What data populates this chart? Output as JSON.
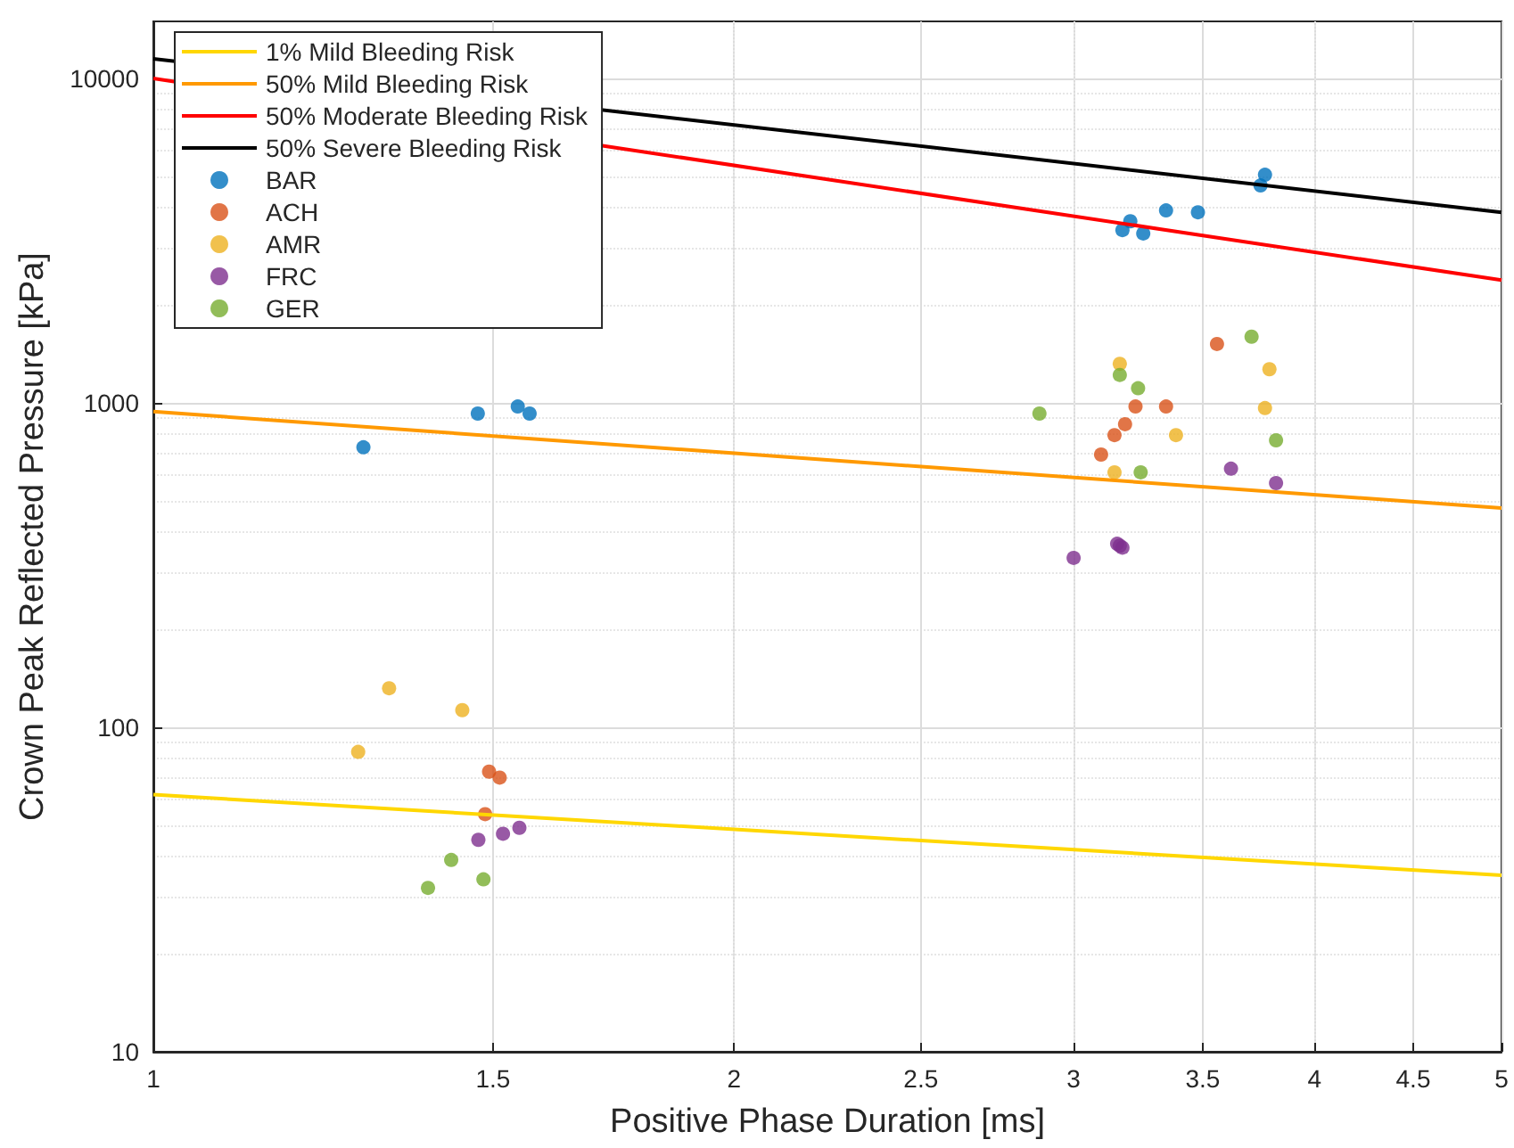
{
  "chart_data": {
    "type": "scatter",
    "xlabel": "Positive Phase Duration [ms]",
    "ylabel": "Crown Peak Reflected Pressure [kPa]",
    "log": "xy",
    "grid": true,
    "legend": "top left",
    "line_style": "solid",
    "xlim": [
      1,
      5
    ],
    "xticks": [
      1,
      1.5,
      2,
      2.5,
      3,
      3.5,
      4,
      4.5,
      5
    ],
    "ylim": [
      10,
      15000
    ],
    "yticks": [
      10,
      100,
      1000,
      10000
    ],
    "series": [
      {
        "name": "1% Mild Bleeding Risk",
        "type": "line",
        "marker": "none",
        "color": "#ffd700",
        "x": [
          1,
          5
        ],
        "values": [
          62,
          35
        ]
      },
      {
        "name": "50% Mild Bleeding Risk",
        "type": "line",
        "marker": "none",
        "color": "#ff9900",
        "x": [
          1,
          5
        ],
        "values": [
          940,
          474
        ]
      },
      {
        "name": "50% Moderate Bleeding Risk",
        "type": "line",
        "marker": "none",
        "color": "#ff0000",
        "x": [
          1,
          5
        ],
        "values": [
          10000,
          2390
        ]
      },
      {
        "name": "50% Severe Bleeding Risk",
        "type": "line",
        "marker": "none",
        "color": "#000000",
        "x": [
          1,
          5
        ],
        "values": [
          11500,
          3870
        ]
      },
      {
        "name": "BAR",
        "marker": "circle",
        "color": "#0072bd",
        "x": [
          1.285,
          1.473,
          1.545,
          1.567,
          3.18,
          3.21,
          3.26,
          3.35,
          3.48,
          3.75,
          3.77
        ],
        "values": [
          730,
          927,
          975,
          927,
          3410,
          3630,
          3330,
          3920,
          3870,
          4680,
          5050
        ]
      },
      {
        "name": "ACH",
        "marker": "circle",
        "color": "#d95319",
        "x": [
          3.56,
          3.23,
          3.35,
          3.19,
          3.15,
          3.1,
          1.493,
          1.512,
          1.486
        ],
        "values": [
          1520,
          975,
          975,
          860,
          796,
          693,
          73,
          70,
          54
        ]
      },
      {
        "name": "AMR",
        "marker": "circle",
        "color": "#edb120",
        "x": [
          3.17,
          3.79,
          3.77,
          3.39,
          3.15,
          1.325,
          1.446,
          1.277
        ],
        "values": [
          1320,
          1270,
          964,
          796,
          611,
          132,
          113,
          84
        ]
      },
      {
        "name": "FRC",
        "marker": "circle",
        "color": "#7e2f8e",
        "x": [
          3.62,
          3.82,
          3.16,
          3.17,
          3.18,
          3.0,
          1.474,
          1.518,
          1.548
        ],
        "values": [
          627,
          566,
          368,
          363,
          358,
          333,
          45,
          47,
          49
        ]
      },
      {
        "name": "GER",
        "marker": "circle",
        "color": "#77ac30",
        "x": [
          3.71,
          3.17,
          3.24,
          2.88,
          3.82,
          3.25,
          1.427,
          1.388,
          1.483
        ],
        "values": [
          1600,
          1220,
          1110,
          927,
          767,
          611,
          39,
          32,
          34
        ]
      }
    ]
  }
}
